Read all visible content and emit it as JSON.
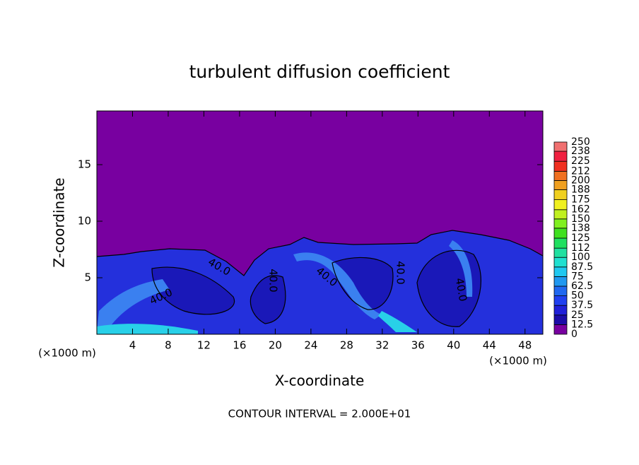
{
  "chart_data": {
    "type": "contour",
    "title": "turbulent diffusion coefficient",
    "x_label": "X-coordinate",
    "y_label": "Z-coordinate",
    "x_unit": "(×1000 m)",
    "y_unit": "(×1000 m)",
    "xlim": [
      0,
      50
    ],
    "ylim": [
      0,
      19.75
    ],
    "xticks": [
      4,
      8,
      12,
      16,
      20,
      24,
      28,
      32,
      36,
      40,
      44,
      48
    ],
    "yticks": [
      5,
      10,
      15
    ],
    "contour_labels": [
      "40.0",
      "40.0",
      "40.0",
      "40.0",
      "40.0",
      "40.0"
    ],
    "footer": "CONTOUR INTERVAL = 2.000E+01",
    "colorbar": {
      "levels": [
        0,
        12.5,
        25,
        37.5,
        50,
        62.5,
        75,
        87.5,
        100,
        112,
        125,
        138,
        150,
        162,
        175,
        188,
        200,
        212,
        225,
        238,
        250
      ],
      "colors": [
        "#7800a0",
        "#1c0ca8",
        "#2020d8",
        "#2040f0",
        "#2068f0",
        "#2098f0",
        "#20c8f0",
        "#20e0d0",
        "#20e0a0",
        "#20e060",
        "#40e020",
        "#80f020",
        "#c0f020",
        "#f0f020",
        "#f0d020",
        "#f0a020",
        "#f07020",
        "#f03020",
        "#f02040",
        "#f07070"
      ]
    }
  }
}
